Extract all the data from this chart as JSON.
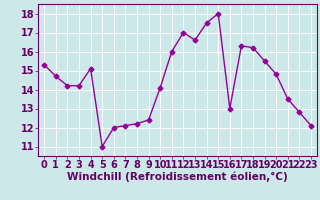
{
  "x": [
    0,
    1,
    2,
    3,
    4,
    5,
    6,
    7,
    8,
    9,
    10,
    11,
    12,
    13,
    14,
    15,
    16,
    17,
    18,
    19,
    20,
    21,
    22,
    23
  ],
  "y": [
    15.3,
    14.7,
    14.2,
    14.2,
    15.1,
    11.0,
    12.0,
    12.1,
    12.2,
    12.4,
    14.1,
    16.0,
    17.0,
    16.6,
    17.5,
    18.0,
    13.0,
    16.3,
    16.2,
    15.5,
    14.8,
    13.5,
    12.8,
    12.1
  ],
  "line_color": "#990099",
  "marker": "D",
  "marker_size": 2.5,
  "bg_color": "#cce8e8",
  "grid_color": "#ffffff",
  "xlabel": "Windchill (Refroidissement éolien,°C)",
  "xlabel_color": "#660066",
  "xlabel_fontsize": 7.5,
  "tick_fontsize": 7,
  "ylim": [
    10.5,
    18.5
  ],
  "yticks": [
    11,
    12,
    13,
    14,
    15,
    16,
    17,
    18
  ],
  "xticks": [
    0,
    1,
    2,
    3,
    4,
    5,
    6,
    7,
    8,
    9,
    10,
    11,
    12,
    13,
    14,
    15,
    16,
    17,
    18,
    19,
    20,
    21,
    22,
    23
  ],
  "tick_color": "#660066",
  "axis_color": "#660066",
  "line_width": 1.0
}
